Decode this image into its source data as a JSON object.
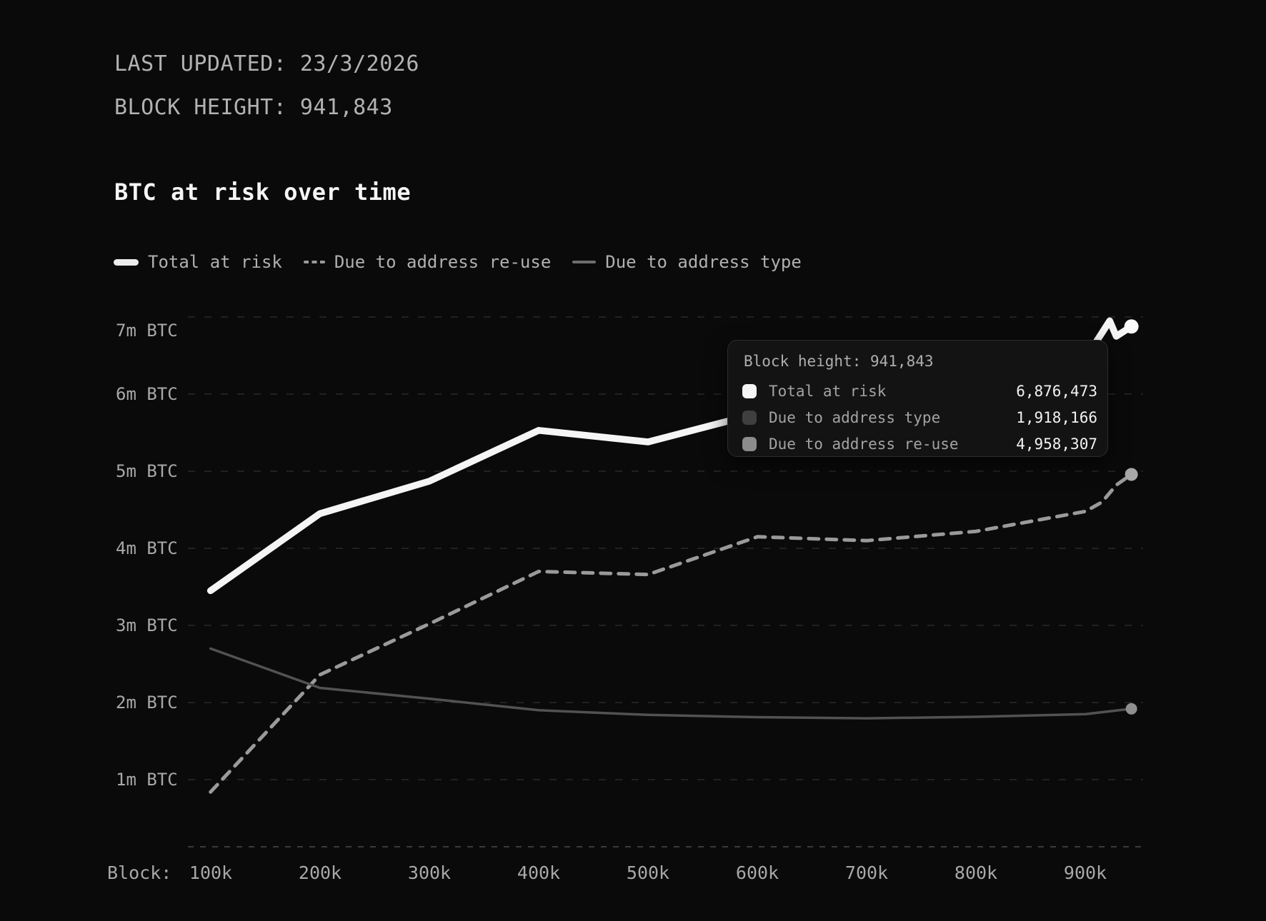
{
  "header": {
    "last_updated_label": "LAST UPDATED:",
    "last_updated_value": "23/3/2026",
    "block_height_label": "BLOCK HEIGHT:",
    "block_height_value": "941,843"
  },
  "title": "BTC at risk over time",
  "legend": [
    {
      "label": "Total at risk",
      "swatch": "solid-thick",
      "color": "#f5f5f5"
    },
    {
      "label": "Due to address re-use",
      "swatch": "dashed",
      "color": "#9a9a9a"
    },
    {
      "label": "Due to address type",
      "swatch": "solid-thin",
      "color": "#6e6e6e"
    }
  ],
  "tooltip": {
    "header": "Block height: 941,843",
    "rows": [
      {
        "label": "Total at risk",
        "value": "6,876,473",
        "swatch_color": "#f5f5f5"
      },
      {
        "label": "Due to address type",
        "value": "1,918,166",
        "swatch_color": "#3f3f3f"
      },
      {
        "label": "Due to address re-use",
        "value": "4,958,307",
        "swatch_color": "#8c8c8c"
      }
    ]
  },
  "chart_data": {
    "type": "line",
    "title": "BTC at risk over time",
    "legend_position": "top",
    "grid": "horizontal-dashed",
    "background": "#0a0a0a",
    "x_axis": {
      "prefix_label": "Block:",
      "ticks": [
        "100k",
        "200k",
        "300k",
        "400k",
        "500k",
        "600k",
        "700k",
        "800k",
        "900k"
      ],
      "tick_values": [
        100000,
        200000,
        300000,
        400000,
        500000,
        600000,
        700000,
        800000,
        900000
      ],
      "min": 100000,
      "max_data_block": 941843
    },
    "y_axis": {
      "ticks": [
        "7m BTC",
        "6m BTC",
        "5m BTC",
        "4m BTC",
        "3m BTC",
        "2m BTC",
        "1m BTC"
      ],
      "tick_values": [
        7000000,
        6000000,
        5000000,
        4000000,
        3000000,
        2000000,
        1000000
      ],
      "unit": "BTC"
    },
    "series": [
      {
        "name": "Total at risk",
        "style": "solid-thick",
        "color": "#f5f5f5",
        "final_value": 6876473,
        "points": [
          [
            100000,
            3450000
          ],
          [
            200000,
            4450000
          ],
          [
            300000,
            4870000
          ],
          [
            400000,
            5530000
          ],
          [
            500000,
            5380000
          ],
          [
            600000,
            5750000
          ],
          [
            700000,
            6080000
          ],
          [
            800000,
            6420000
          ],
          [
            900000,
            6600000
          ],
          [
            908000,
            6640000
          ],
          [
            922000,
            6950000
          ],
          [
            928000,
            6750000
          ],
          [
            941843,
            6876473
          ]
        ]
      },
      {
        "name": "Due to address re-use",
        "style": "dashed",
        "color": "#9a9a9a",
        "final_value": 4958307,
        "points": [
          [
            100000,
            840000
          ],
          [
            200000,
            2360000
          ],
          [
            300000,
            3020000
          ],
          [
            400000,
            3700000
          ],
          [
            500000,
            3660000
          ],
          [
            600000,
            4150000
          ],
          [
            700000,
            4100000
          ],
          [
            800000,
            4220000
          ],
          [
            900000,
            4480000
          ],
          [
            915000,
            4600000
          ],
          [
            928000,
            4820000
          ],
          [
            941843,
            4958307
          ]
        ]
      },
      {
        "name": "Due to address type",
        "style": "solid-thin",
        "color": "#525252",
        "final_value": 1918166,
        "points": [
          [
            100000,
            2700000
          ],
          [
            200000,
            2190000
          ],
          [
            300000,
            2050000
          ],
          [
            400000,
            1900000
          ],
          [
            500000,
            1840000
          ],
          [
            600000,
            1810000
          ],
          [
            700000,
            1795000
          ],
          [
            800000,
            1815000
          ],
          [
            900000,
            1850000
          ],
          [
            941843,
            1918166
          ]
        ]
      }
    ]
  }
}
